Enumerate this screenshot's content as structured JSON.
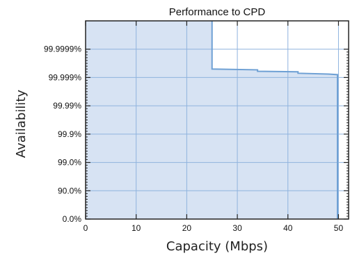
{
  "chart_data": {
    "type": "line",
    "title": "Performance to CPD",
    "xlabel": "Capacity (Mbps)",
    "ylabel": "Availability",
    "xlim": [
      0,
      52
    ],
    "ylim": [
      0,
      7
    ],
    "x_ticks": [
      0,
      10,
      20,
      30,
      40,
      50
    ],
    "x_tick_labels": [
      "0",
      "10",
      "20",
      "30",
      "40",
      "50"
    ],
    "y_ticks": [
      0,
      1,
      2,
      3,
      4,
      5,
      6
    ],
    "y_tick_labels": [
      "0.0%",
      "90.0%",
      "99.0%",
      "99.9%",
      "99.99%",
      "99.999%",
      "99.9999%"
    ],
    "grid": true,
    "series": [
      {
        "color": "#6ea0d4",
        "x": [
          25,
          25,
          34,
          34,
          42,
          42,
          48,
          49.8,
          49.8
        ],
        "y": [
          7,
          5.3,
          5.27,
          5.22,
          5.2,
          5.15,
          5.12,
          5.1,
          0
        ]
      }
    ],
    "fill_under_color": "#d7e3f3"
  }
}
